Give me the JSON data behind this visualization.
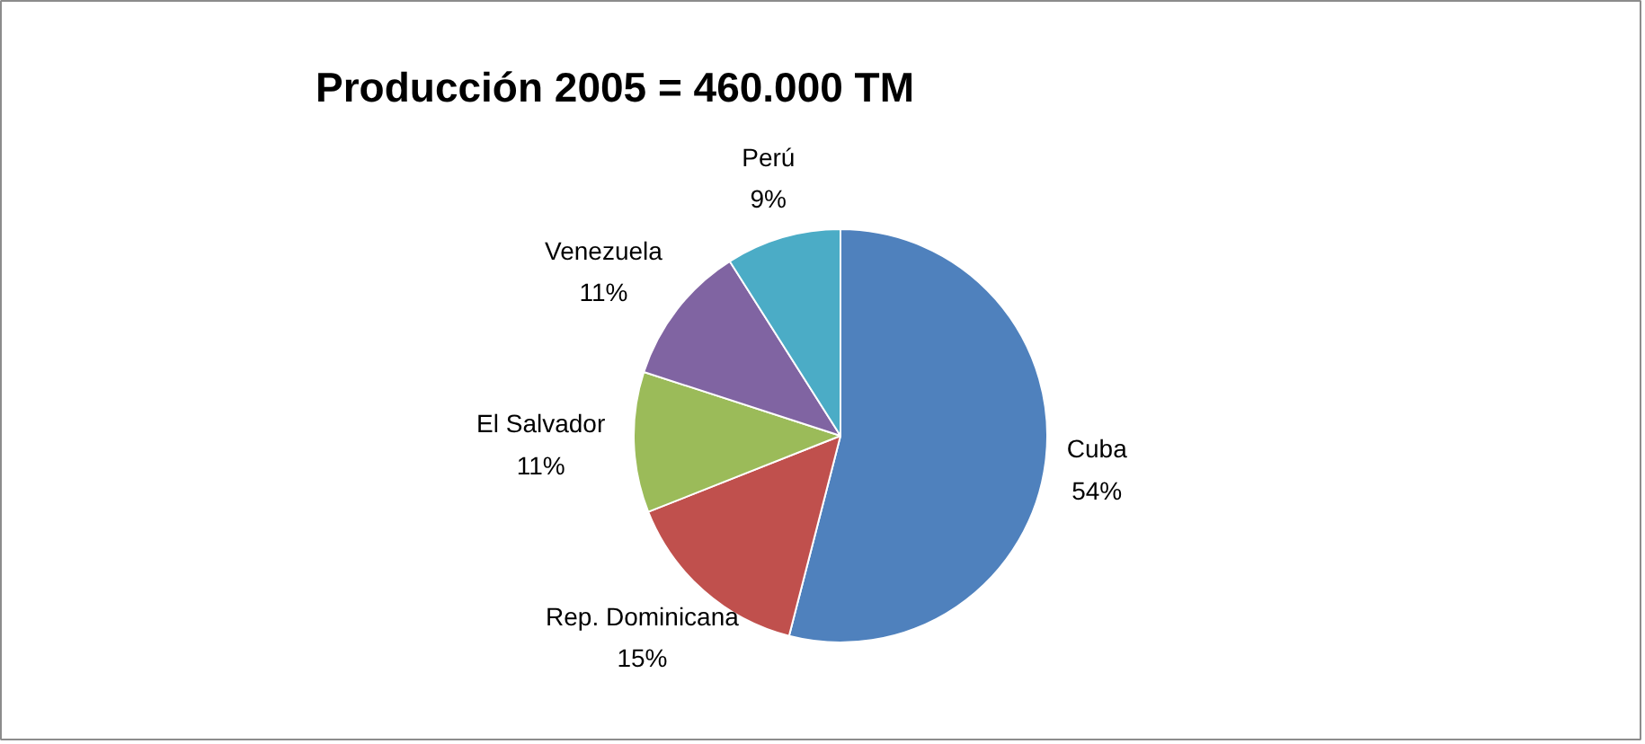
{
  "chart_data": {
    "type": "pie",
    "title": "Producción 2005 = 460.000 TM",
    "categories": [
      "Cuba",
      "Rep. Dominicana",
      "El Salvador",
      "Venezuela",
      "Perú"
    ],
    "values": [
      54,
      15,
      11,
      11,
      9
    ],
    "value_labels": [
      "54%",
      "15%",
      "11%",
      "11%",
      "9%"
    ],
    "colors": [
      "#4f81bd",
      "#c0504d",
      "#9bbb59",
      "#8064a2",
      "#4bacc6"
    ]
  }
}
